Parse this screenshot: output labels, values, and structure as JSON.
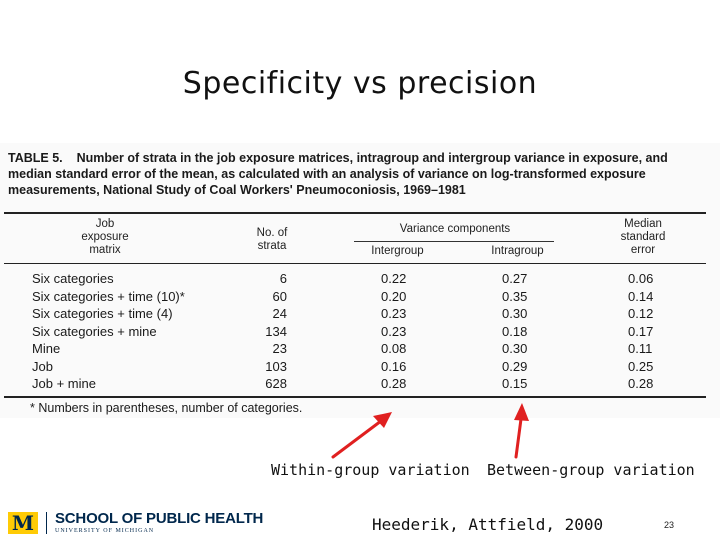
{
  "slide": {
    "title": "Specificity vs precision",
    "citation": "Heederik, Attfield, 2000",
    "page_number": "23"
  },
  "table": {
    "caption_label": "TABLE 5.",
    "caption_text": "Number of strata in the job exposure matrices, intragroup and intergroup variance in exposure, and median standard error of the mean, as calculated with an analysis of variance on log-transformed exposure measurements, National Study of Coal Workers' Pneumoconiosis, 1969–1981",
    "headers": {
      "matrix_l1": "Job",
      "matrix_l2": "exposure",
      "matrix_l3": "matrix",
      "strata_l1": "No. of",
      "strata_l2": "strata",
      "variance_group": "Variance components",
      "intergroup": "Intergroup",
      "intragroup": "Intragroup",
      "error_l1": "Median",
      "error_l2": "standard",
      "error_l3": "error"
    },
    "rows": [
      {
        "matrix": "Six categories",
        "strata": "6",
        "intergroup": "0.22",
        "intragroup": "0.27",
        "error": "0.06"
      },
      {
        "matrix": "Six categories + time (10)*",
        "strata": "60",
        "intergroup": "0.20",
        "intragroup": "0.35",
        "error": "0.14"
      },
      {
        "matrix": "Six categories + time (4)",
        "strata": "24",
        "intergroup": "0.23",
        "intragroup": "0.30",
        "error": "0.12"
      },
      {
        "matrix": "Six categories + mine",
        "strata": "134",
        "intergroup": "0.23",
        "intragroup": "0.18",
        "error": "0.17"
      },
      {
        "matrix": "Mine",
        "strata": "23",
        "intergroup": "0.08",
        "intragroup": "0.30",
        "error": "0.11"
      },
      {
        "matrix": "Job",
        "strata": "103",
        "intergroup": "0.16",
        "intragroup": "0.29",
        "error": "0.25"
      },
      {
        "matrix": "Job + mine",
        "strata": "628",
        "intergroup": "0.28",
        "intragroup": "0.15",
        "error": "0.28"
      }
    ],
    "footnote": "* Numbers in parentheses, number of categories."
  },
  "annotations": {
    "left_label": "Within-group variation",
    "right_label": "Between-group variation",
    "arrow_color": "#e02020"
  },
  "footer": {
    "logo_mark": "M",
    "school_name": "SCHOOL OF PUBLIC HEALTH",
    "university": "UNIVERSITY OF MICHIGAN",
    "brand_blue": "#00274c",
    "brand_maize": "#ffcb05"
  }
}
